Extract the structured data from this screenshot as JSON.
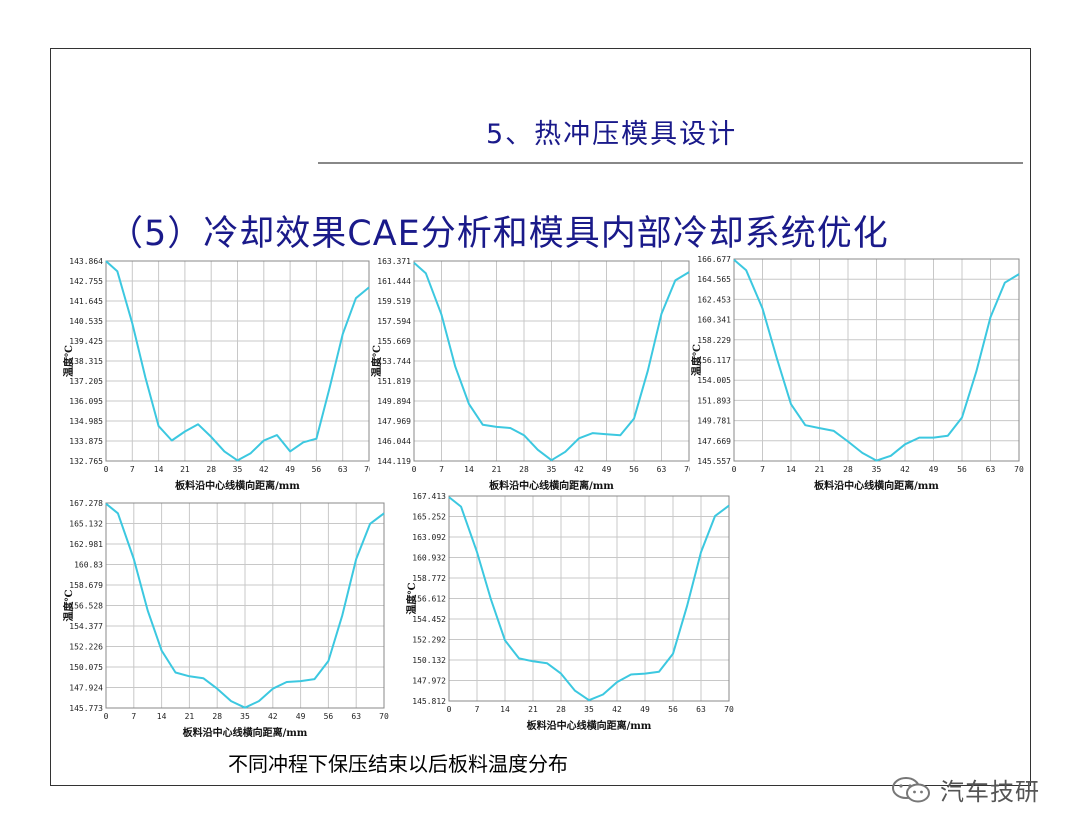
{
  "slide": {
    "title": "5、热冲压模具设计",
    "subtitle": "（5）冷却效果CAE分析和模具内部冷却系统优化",
    "caption": "不同冲程下保压结束以后板料温度分布",
    "watermark": "汽车技研",
    "line_color": "#3cc8e0"
  },
  "chart_data": [
    {
      "type": "line",
      "ylabel": "温度℃",
      "xlabel": "板料沿中心线横向距离/mm",
      "x_ticks": [
        "0",
        "7",
        "14",
        "21",
        "28",
        "35",
        "42",
        "49",
        "56",
        "63",
        "70"
      ],
      "y_ticks": [
        "143.864",
        "142.755",
        "141.645",
        "140.535",
        "139.425",
        "138.315",
        "137.205",
        "136.095",
        "134.985",
        "133.875",
        "132.765"
      ],
      "ylim": [
        132.765,
        143.864
      ],
      "xlim": [
        0,
        70
      ],
      "x": [
        0,
        3,
        7,
        10.5,
        14,
        17.5,
        21,
        24.5,
        28,
        31.5,
        35,
        38.5,
        42,
        45.5,
        49,
        52.5,
        56,
        59.5,
        63,
        66.5,
        70
      ],
      "values": [
        143.86,
        143.3,
        140.4,
        137.4,
        134.7,
        133.9,
        134.4,
        134.8,
        134.1,
        133.3,
        132.8,
        133.2,
        133.9,
        134.2,
        133.3,
        133.8,
        134.0,
        136.8,
        139.8,
        141.8,
        142.4
      ]
    },
    {
      "type": "line",
      "ylabel": "温度℃",
      "xlabel": "板料沿中心线横向距离/mm",
      "x_ticks": [
        "0",
        "7",
        "14",
        "21",
        "28",
        "35",
        "42",
        "49",
        "56",
        "63",
        "70"
      ],
      "y_ticks": [
        "163.371",
        "161.444",
        "159.519",
        "157.594",
        "155.669",
        "153.744",
        "151.819",
        "149.894",
        "147.969",
        "146.044",
        "144.119"
      ],
      "ylim": [
        144.119,
        163.371
      ],
      "xlim": [
        0,
        70
      ],
      "x": [
        0,
        3,
        7,
        10.5,
        14,
        17.5,
        21,
        24.5,
        28,
        31.5,
        35,
        38.5,
        42,
        45.5,
        49,
        52.5,
        56,
        59.5,
        63,
        66.5,
        70
      ],
      "values": [
        163.2,
        162.2,
        158.2,
        153.2,
        149.6,
        147.6,
        147.4,
        147.3,
        146.6,
        145.2,
        144.2,
        145.0,
        146.3,
        146.8,
        146.7,
        146.6,
        148.2,
        152.8,
        158.3,
        161.5,
        162.3
      ]
    },
    {
      "type": "line",
      "ylabel": "温度℃",
      "xlabel": "板料沿中心线横向距离/mm",
      "x_ticks": [
        "0",
        "7",
        "14",
        "21",
        "28",
        "35",
        "42",
        "49",
        "56",
        "63",
        "70"
      ],
      "y_ticks": [
        "166.677",
        "164.565",
        "162.453",
        "160.341",
        "158.229",
        "156.117",
        "154.005",
        "151.893",
        "149.781",
        "147.669",
        "145.557"
      ],
      "ylim": [
        145.557,
        166.677
      ],
      "xlim": [
        0,
        70
      ],
      "x": [
        0,
        3,
        7,
        10.5,
        14,
        17.5,
        21,
        24.5,
        28,
        31.5,
        35,
        38.5,
        42,
        45.5,
        49,
        52.5,
        56,
        59.5,
        63,
        66.5,
        70
      ],
      "values": [
        166.6,
        165.5,
        161.5,
        156.3,
        151.5,
        149.3,
        149.0,
        148.7,
        147.6,
        146.4,
        145.6,
        146.1,
        147.3,
        148.0,
        148.0,
        148.2,
        150.1,
        154.9,
        160.6,
        164.2,
        165.1
      ]
    },
    {
      "type": "line",
      "ylabel": "温度℃",
      "xlabel": "板料沿中心线横向距离/mm",
      "x_ticks": [
        "0",
        "7",
        "14",
        "21",
        "28",
        "35",
        "42",
        "49",
        "56",
        "63",
        "70"
      ],
      "y_ticks": [
        "167.278",
        "165.132",
        "162.981",
        "160.83",
        "158.679",
        "156.528",
        "154.377",
        "152.226",
        "150.075",
        "147.924",
        "145.773"
      ],
      "ylim": [
        145.773,
        167.278
      ],
      "xlim": [
        0,
        70
      ],
      "x": [
        0,
        3,
        7,
        10.5,
        14,
        17.5,
        21,
        24.5,
        28,
        31.5,
        35,
        38.5,
        42,
        45.5,
        49,
        52.5,
        56,
        59.5,
        63,
        66.5,
        70
      ],
      "values": [
        167.2,
        166.2,
        161.4,
        156.0,
        151.8,
        149.5,
        149.1,
        148.9,
        147.8,
        146.5,
        145.8,
        146.5,
        147.8,
        148.5,
        148.6,
        148.8,
        150.7,
        155.5,
        161.4,
        165.1,
        166.2
      ]
    },
    {
      "type": "line",
      "ylabel": "温度℃",
      "xlabel": "板料沿中心线横向距离/mm",
      "x_ticks": [
        "0",
        "7",
        "14",
        "21",
        "28",
        "35",
        "42",
        "49",
        "56",
        "63",
        "70"
      ],
      "y_ticks": [
        "167.413",
        "165.252",
        "163.092",
        "160.932",
        "158.772",
        "156.612",
        "154.452",
        "152.292",
        "150.132",
        "147.972",
        "145.812"
      ],
      "ylim": [
        145.812,
        167.413
      ],
      "xlim": [
        0,
        70
      ],
      "x": [
        0,
        3,
        7,
        10.5,
        14,
        17.5,
        21,
        24.5,
        28,
        31.5,
        35,
        38.5,
        42,
        45.5,
        49,
        52.5,
        56,
        59.5,
        63,
        66.5,
        70
      ],
      "values": [
        167.3,
        166.3,
        161.5,
        156.5,
        152.2,
        150.3,
        150.0,
        149.8,
        148.7,
        146.9,
        145.9,
        146.5,
        147.8,
        148.6,
        148.7,
        148.9,
        150.8,
        155.8,
        161.5,
        165.3,
        166.4
      ]
    }
  ]
}
